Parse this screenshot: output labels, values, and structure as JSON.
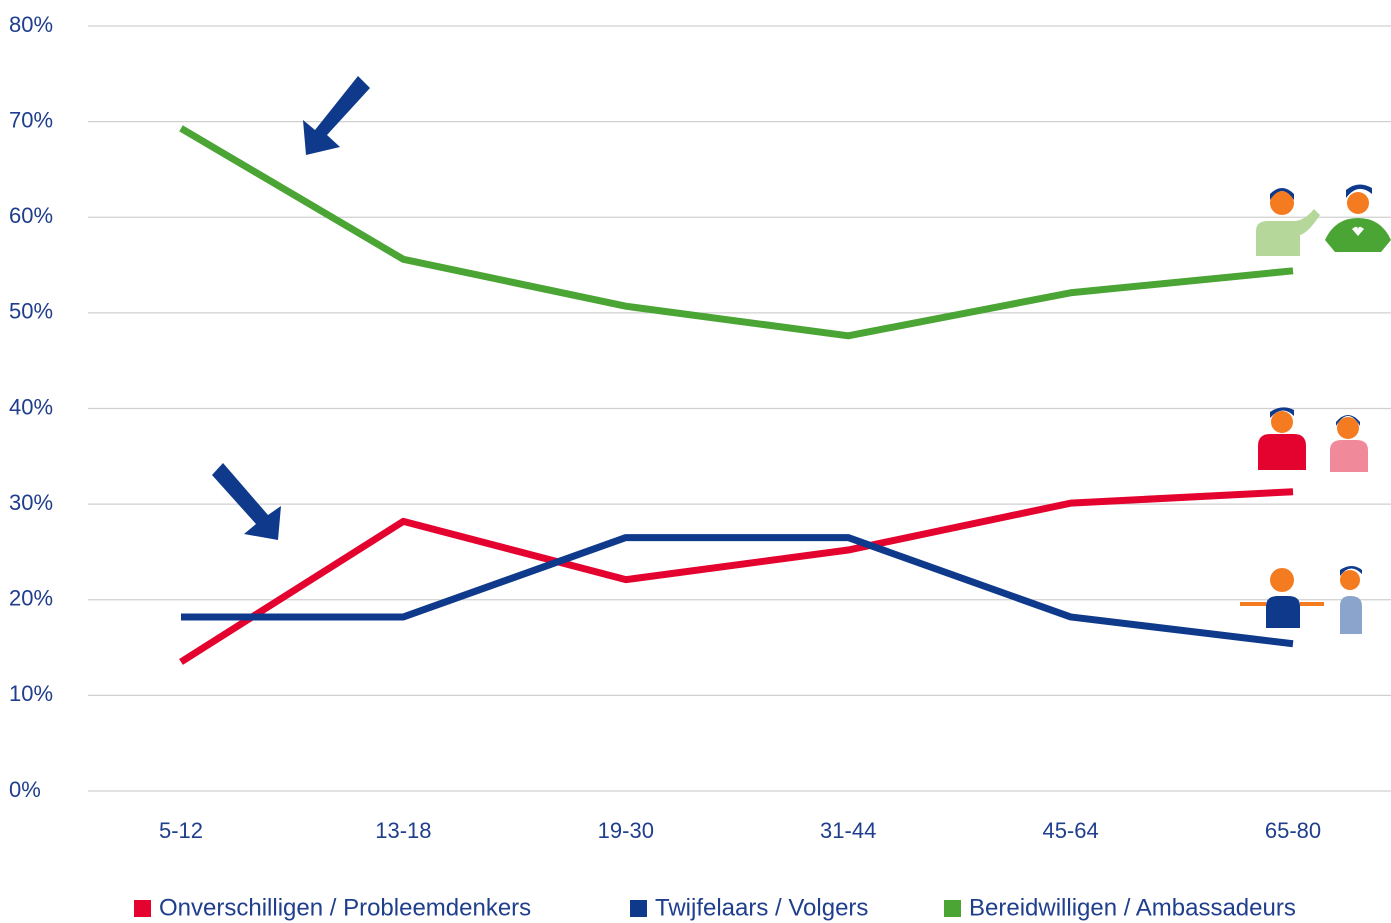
{
  "chart_data": {
    "type": "line",
    "categories": [
      "5-12",
      "13-18",
      "19-30",
      "31-44",
      "45-64",
      "65-80"
    ],
    "series": [
      {
        "name": "Onverschilligen / Probleemdenkers",
        "color": "#e4032e",
        "values": [
          13.5,
          28.2,
          22.1,
          25.2,
          30.1,
          31.3
        ]
      },
      {
        "name": "Twijfelaars / Volgers",
        "color": "#0f3a8c",
        "values": [
          18.2,
          18.2,
          26.5,
          26.5,
          18.2,
          15.4
        ]
      },
      {
        "name": "Bereidwilligen / Ambassadeurs",
        "color": "#4aa534",
        "values": [
          69.3,
          55.6,
          50.7,
          47.6,
          52.1,
          54.4
        ]
      }
    ],
    "ylim": [
      0,
      80
    ],
    "yticks": [
      {
        "value": 0,
        "label": "0%"
      },
      {
        "value": 10,
        "label": "10%"
      },
      {
        "value": 20,
        "label": "20%"
      },
      {
        "value": 30,
        "label": "30%"
      },
      {
        "value": 40,
        "label": "40%"
      },
      {
        "value": 50,
        "label": "50%"
      },
      {
        "value": 60,
        "label": "60%"
      },
      {
        "value": 70,
        "label": "70%"
      },
      {
        "value": 80,
        "label": "80%"
      }
    ],
    "grid": true,
    "legend": "bottom"
  }
}
